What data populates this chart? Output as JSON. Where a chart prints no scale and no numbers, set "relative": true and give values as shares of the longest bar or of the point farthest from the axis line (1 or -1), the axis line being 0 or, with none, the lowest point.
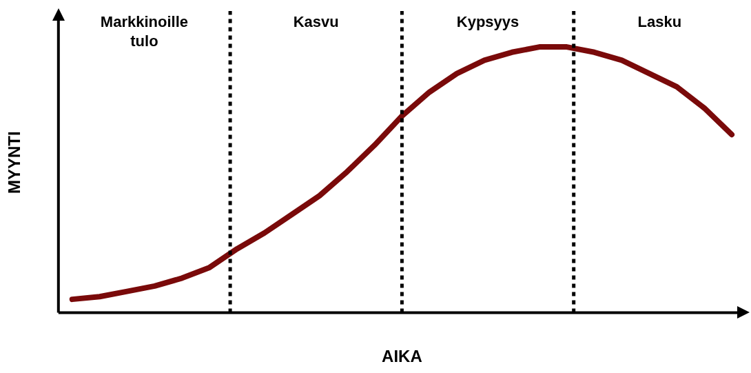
{
  "chart_data": {
    "type": "line",
    "relative": true,
    "xlabel": "AIKA",
    "ylabel": "MYYNTI",
    "categories": [
      null,
      null,
      null,
      null,
      null,
      null,
      null,
      null,
      null,
      null,
      null,
      null,
      null,
      null,
      null,
      null,
      null,
      null,
      null,
      null,
      null,
      null,
      null,
      null,
      null
    ],
    "grid": false,
    "legend": false,
    "marker": "none",
    "line_style": "solid",
    "series": [
      {
        "color": "#7a0a0a",
        "values": [
          0.05,
          0.06,
          0.08,
          0.1,
          0.13,
          0.17,
          0.24,
          0.3,
          0.37,
          0.44,
          0.53,
          0.63,
          0.74,
          0.83,
          0.9,
          0.95,
          0.98,
          1.0,
          1.0,
          0.98,
          0.95,
          0.9,
          0.85,
          0.77,
          0.67
        ]
      }
    ],
    "annotations": [
      "Markkinoille tulo",
      "Kasvu",
      "Kypsyys",
      "Lasku"
    ]
  }
}
